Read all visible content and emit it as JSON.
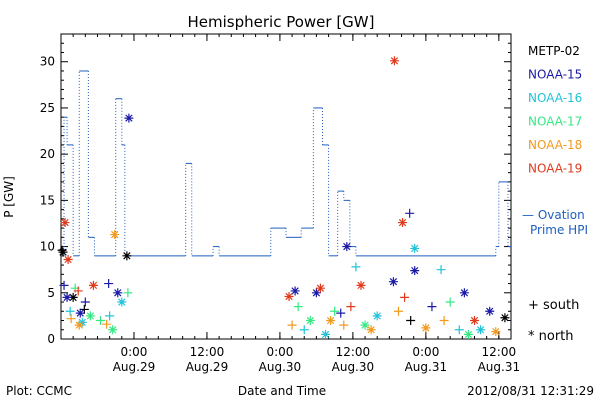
{
  "chart_data": {
    "type": "scatter",
    "title": "Hemispheric Power [GW]",
    "ylabel": "P [GW]",
    "xlabel": "Date and Time",
    "ylim": [
      0,
      33
    ],
    "yticks": [
      0,
      5,
      10,
      15,
      20,
      25,
      30
    ],
    "xlim": [
      "2012-08-28T12:00",
      "2012-08-31T14:00"
    ],
    "xticks": [
      {
        "time": "2012-08-29T00:00",
        "label1": "0:00",
        "label2": "Aug.29"
      },
      {
        "time": "2012-08-29T12:00",
        "label1": "12:00",
        "label2": "Aug.29"
      },
      {
        "time": "2012-08-30T00:00",
        "label1": "0:00",
        "label2": "Aug.30"
      },
      {
        "time": "2012-08-30T12:00",
        "label1": "12:00",
        "label2": "Aug.30"
      },
      {
        "time": "2012-08-31T00:00",
        "label1": "0:00",
        "label2": "Aug.31"
      },
      {
        "time": "2012-08-31T12:00",
        "label1": "12:00",
        "label2": "Aug.31"
      }
    ],
    "footer_left": "Plot: CCMC",
    "footer_right": "2012/08/31 12:31:29",
    "ovation": {
      "label_line1": "— Ovation",
      "label_line2": "Prime HPI",
      "color": "#1f5fbf",
      "points": [
        [
          "2012-08-28T12:00",
          9
        ],
        [
          "2012-08-28T12:30",
          24
        ],
        [
          "2012-08-28T13:00",
          21
        ],
        [
          "2012-08-28T14:00",
          9
        ],
        [
          "2012-08-28T15:00",
          29
        ],
        [
          "2012-08-28T16:30",
          11
        ],
        [
          "2012-08-28T17:30",
          9
        ],
        [
          "2012-08-28T21:00",
          26
        ],
        [
          "2012-08-28T22:00",
          21
        ],
        [
          "2012-08-28T22:30",
          9
        ],
        [
          "2012-08-29T08:30",
          19
        ],
        [
          "2012-08-29T09:30",
          9
        ],
        [
          "2012-08-29T13:00",
          10
        ],
        [
          "2012-08-29T14:00",
          9
        ],
        [
          "2012-08-29T22:30",
          12
        ],
        [
          "2012-08-30T01:00",
          11
        ],
        [
          "2012-08-30T03:30",
          12
        ],
        [
          "2012-08-30T05:30",
          25
        ],
        [
          "2012-08-30T07:00",
          21
        ],
        [
          "2012-08-30T08:00",
          9
        ],
        [
          "2012-08-30T09:30",
          16
        ],
        [
          "2012-08-30T10:30",
          15
        ],
        [
          "2012-08-30T11:30",
          10
        ],
        [
          "2012-08-30T12:30",
          9
        ],
        [
          "2012-08-31T11:30",
          10
        ],
        [
          "2012-08-31T12:00",
          17
        ],
        [
          "2012-08-31T13:30",
          10
        ]
      ]
    },
    "legend_position": "right",
    "series": [
      {
        "name": "METP-02",
        "color": "#000000",
        "south": [
          [
            "2012-08-28T12:10",
            9.6
          ],
          [
            "2012-08-28T15:50",
            3.2
          ],
          [
            "2012-08-30T21:30",
            2.0
          ]
        ],
        "north": [
          [
            "2012-08-28T12:20",
            9.4
          ],
          [
            "2012-08-28T14:00",
            4.5
          ],
          [
            "2012-08-28T22:50",
            9.0
          ],
          [
            "2012-08-31T13:00",
            2.3
          ]
        ]
      },
      {
        "name": "NOAA-15",
        "color": "#1a1aa6",
        "south": [
          [
            "2012-08-28T12:30",
            5.8
          ],
          [
            "2012-08-28T16:00",
            4.0
          ],
          [
            "2012-08-28T19:50",
            6.0
          ],
          [
            "2012-08-30T10:00",
            2.8
          ],
          [
            "2012-08-30T21:20",
            13.6
          ],
          [
            "2012-08-31T01:00",
            3.5
          ]
        ],
        "north": [
          [
            "2012-08-28T13:00",
            4.5
          ],
          [
            "2012-08-28T15:10",
            2.8
          ],
          [
            "2012-08-28T21:20",
            5.0
          ],
          [
            "2012-08-28T23:10",
            23.9
          ],
          [
            "2012-08-30T02:30",
            5.2
          ],
          [
            "2012-08-30T06:00",
            5.0
          ],
          [
            "2012-08-30T11:00",
            10.0
          ],
          [
            "2012-08-30T18:40",
            6.2
          ],
          [
            "2012-08-30T22:10",
            7.4
          ],
          [
            "2012-08-31T06:20",
            5.0
          ],
          [
            "2012-08-31T10:30",
            3.0
          ]
        ]
      },
      {
        "name": "NOAA-16",
        "color": "#22c3d8",
        "south": [
          [
            "2012-08-28T13:30",
            3.0
          ],
          [
            "2012-08-28T20:00",
            2.5
          ],
          [
            "2012-08-30T04:00",
            1.0
          ],
          [
            "2012-08-30T12:30",
            7.8
          ],
          [
            "2012-08-31T02:30",
            7.5
          ],
          [
            "2012-08-31T05:30",
            1.0
          ]
        ],
        "north": [
          [
            "2012-08-28T15:30",
            1.8
          ],
          [
            "2012-08-28T22:00",
            4.0
          ],
          [
            "2012-08-30T07:30",
            0.5
          ],
          [
            "2012-08-30T16:00",
            2.5
          ],
          [
            "2012-08-30T22:10",
            9.8
          ],
          [
            "2012-08-31T09:00",
            1.0
          ]
        ]
      },
      {
        "name": "NOAA-17",
        "color": "#36e884",
        "south": [
          [
            "2012-08-28T14:20",
            5.5
          ],
          [
            "2012-08-28T18:30",
            2.0
          ],
          [
            "2012-08-28T23:00",
            5.0
          ],
          [
            "2012-08-30T03:00",
            3.5
          ],
          [
            "2012-08-30T09:00",
            3.0
          ],
          [
            "2012-08-31T04:00",
            4.0
          ]
        ],
        "north": [
          [
            "2012-08-28T16:50",
            2.5
          ],
          [
            "2012-08-28T20:30",
            1.0
          ],
          [
            "2012-08-30T05:00",
            2.0
          ],
          [
            "2012-08-30T14:00",
            1.5
          ],
          [
            "2012-08-31T07:00",
            0.5
          ]
        ]
      },
      {
        "name": "NOAA-18",
        "color": "#f19a1f",
        "south": [
          [
            "2012-08-28T13:40",
            2.2
          ],
          [
            "2012-08-28T19:30",
            1.6
          ],
          [
            "2012-08-30T02:00",
            1.5
          ],
          [
            "2012-08-30T10:30",
            1.5
          ],
          [
            "2012-08-30T19:30",
            3.0
          ],
          [
            "2012-08-31T03:00",
            2.0
          ]
        ],
        "north": [
          [
            "2012-08-28T15:00",
            1.5
          ],
          [
            "2012-08-28T20:50",
            11.3
          ],
          [
            "2012-08-30T08:20",
            2.0
          ],
          [
            "2012-08-30T15:00",
            1.0
          ],
          [
            "2012-08-31T00:00",
            1.2
          ],
          [
            "2012-08-31T11:30",
            0.8
          ]
        ]
      },
      {
        "name": "NOAA-19",
        "color": "#e03a1c",
        "south": [
          [
            "2012-08-28T14:50",
            5.2
          ],
          [
            "2012-08-30T11:40",
            3.5
          ],
          [
            "2012-08-30T20:30",
            4.5
          ]
        ],
        "north": [
          [
            "2012-08-28T12:40",
            12.6
          ],
          [
            "2012-08-28T13:10",
            8.6
          ],
          [
            "2012-08-28T17:20",
            5.8
          ],
          [
            "2012-08-30T01:30",
            4.6
          ],
          [
            "2012-08-30T06:40",
            5.5
          ],
          [
            "2012-08-30T13:20",
            5.8
          ],
          [
            "2012-08-30T18:50",
            30.1
          ],
          [
            "2012-08-30T20:10",
            12.6
          ],
          [
            "2012-08-31T08:00",
            2.0
          ]
        ]
      }
    ],
    "marker_key": [
      {
        "symbol": "+",
        "label": "south"
      },
      {
        "symbol": "*",
        "label": "north"
      }
    ]
  }
}
